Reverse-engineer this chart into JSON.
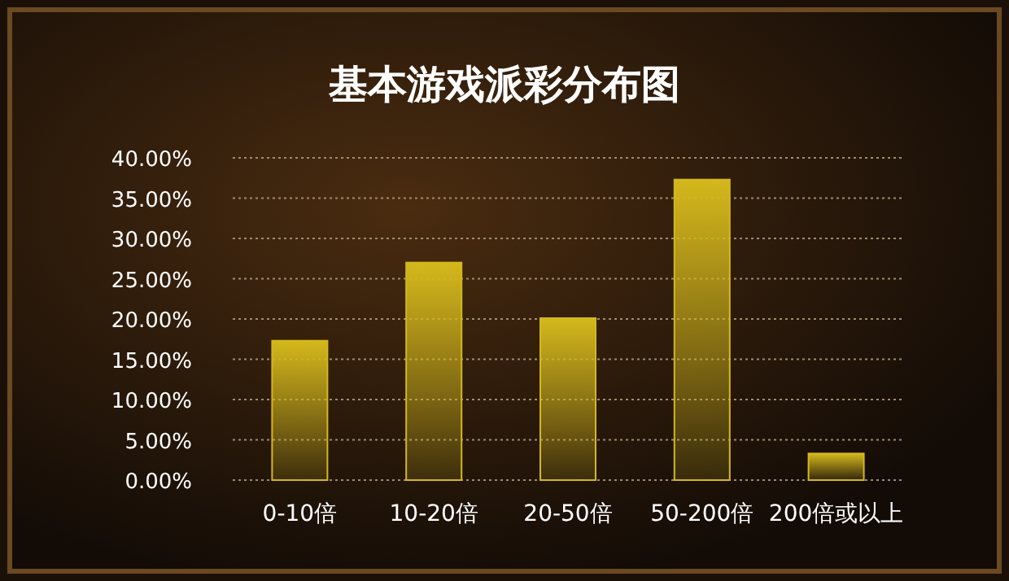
{
  "chart_data": {
    "type": "bar",
    "title": "基本游戏派彩分布图",
    "categories": [
      "0-10倍",
      "10-20倍",
      "20-50倍",
      "50-200倍",
      "200倍或以上"
    ],
    "values": [
      17.3,
      27.0,
      20.1,
      37.3,
      3.3
    ],
    "color": "#d4b81c",
    "ylim": [
      0,
      40
    ],
    "yticks": [
      {
        "value": 0,
        "label": "0.00%"
      },
      {
        "value": 5,
        "label": "5.00%"
      },
      {
        "value": 10,
        "label": "10.00%"
      },
      {
        "value": 15,
        "label": "15.00%"
      },
      {
        "value": 20,
        "label": "20.00%"
      },
      {
        "value": 25,
        "label": "25.00%"
      },
      {
        "value": 30,
        "label": "30.00%"
      },
      {
        "value": 35,
        "label": "35.00%"
      },
      {
        "value": 40,
        "label": "40.00%"
      }
    ],
    "grid": "y"
  }
}
